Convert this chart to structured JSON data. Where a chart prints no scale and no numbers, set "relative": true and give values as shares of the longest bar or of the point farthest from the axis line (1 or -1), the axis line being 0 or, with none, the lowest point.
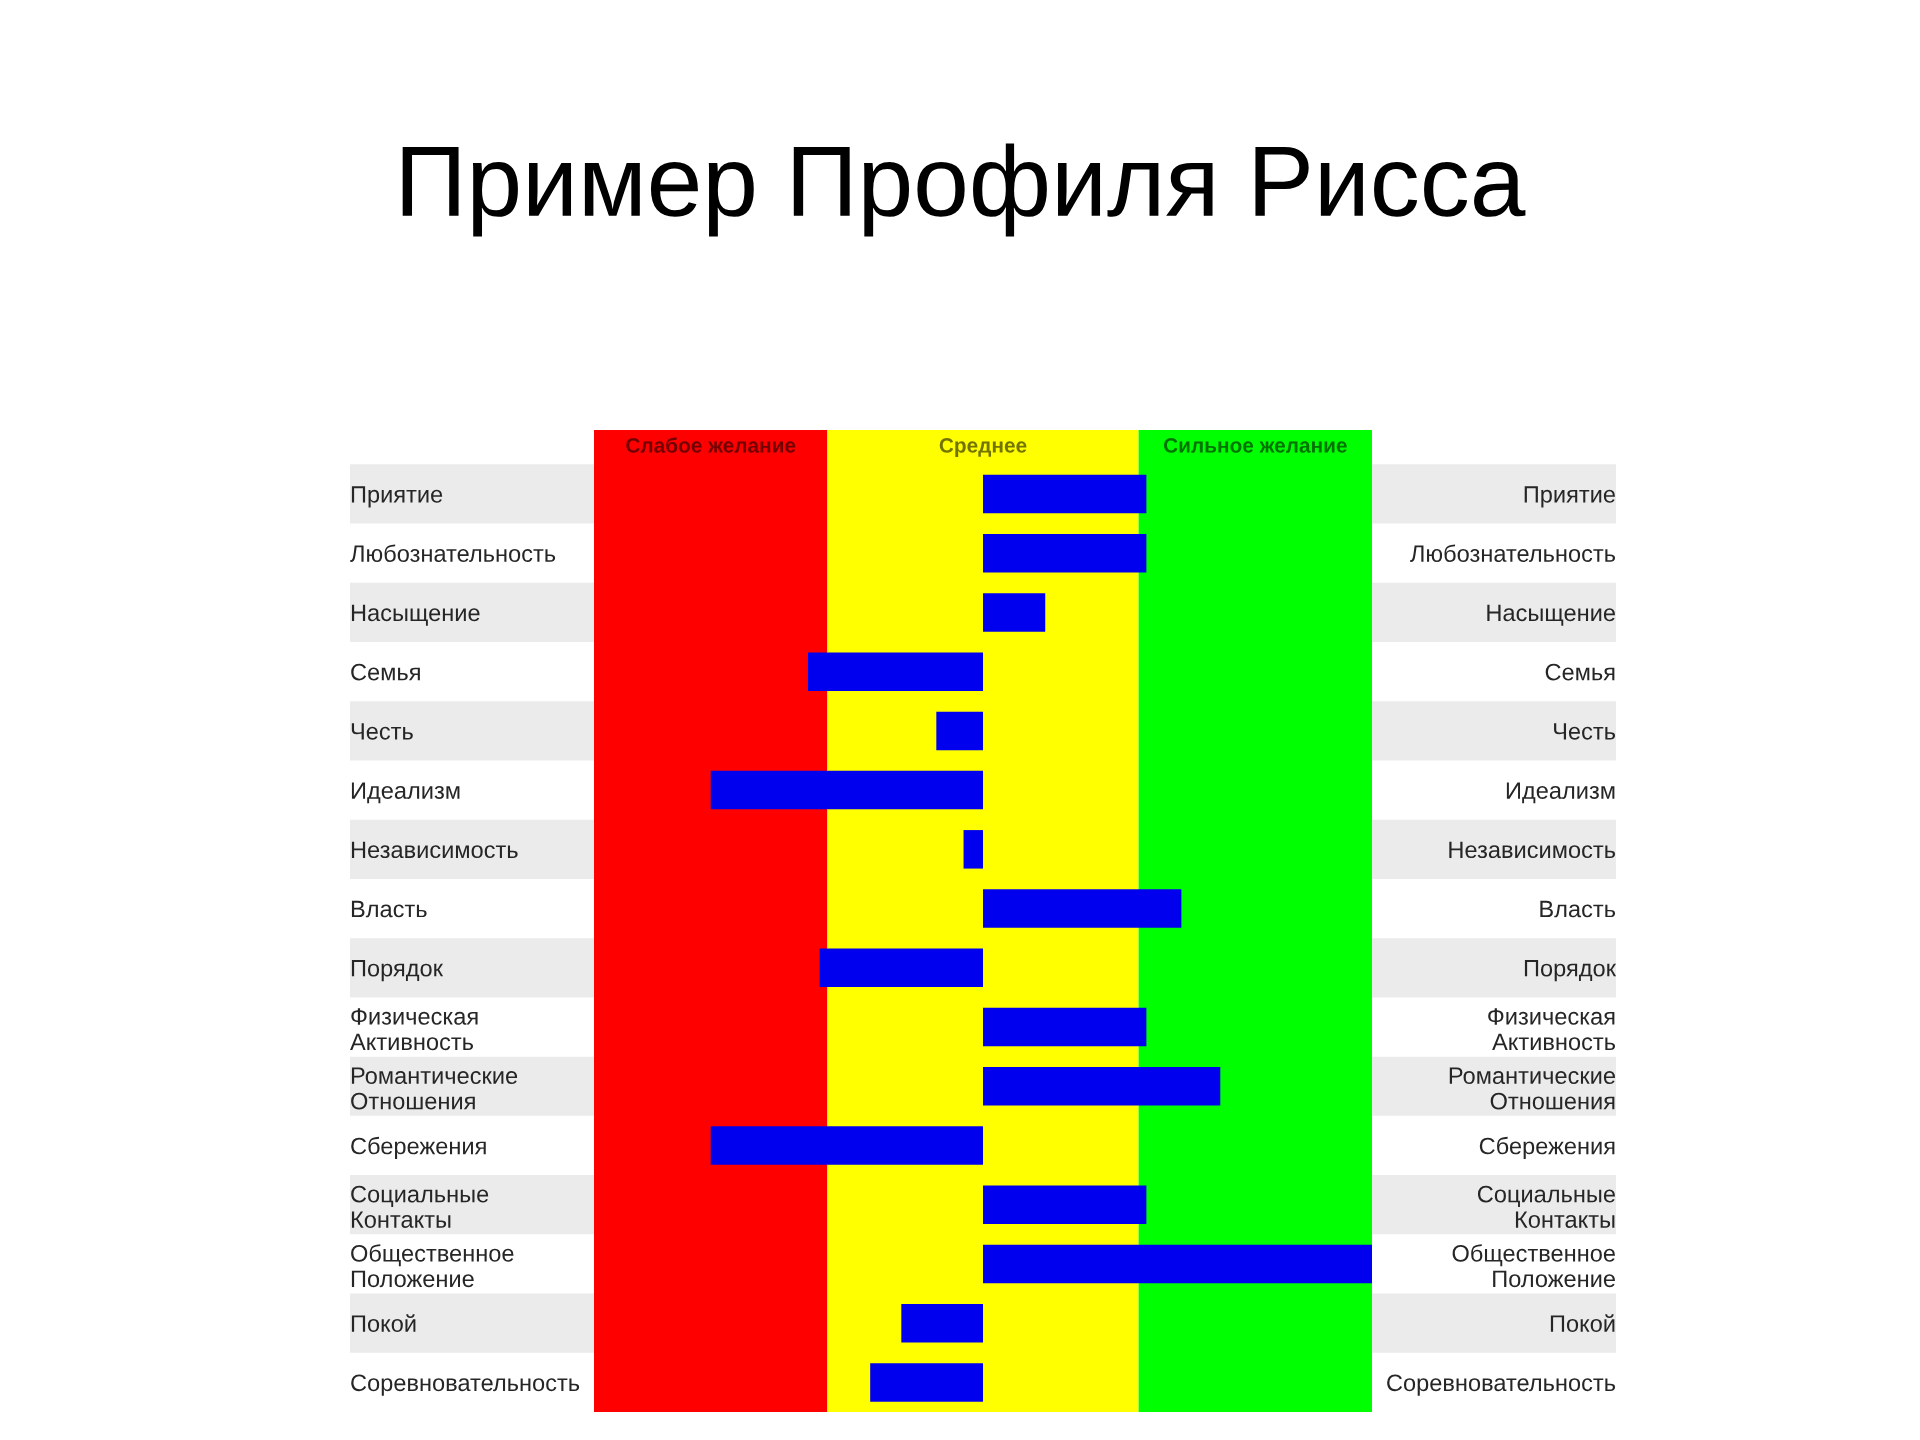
{
  "chart_data": {
    "type": "bar",
    "orientation": "horizontal",
    "relative": true,
    "title": "Пример Профиля Рисса",
    "categories": [
      "Приятие",
      "Любознательность",
      "Насыщение",
      "Семья",
      "Честь",
      "Идеализм",
      "Независимость",
      "Власть",
      "Порядок",
      "Физическая\nАктивность",
      "Романтические\nОтношения",
      "Сбережения",
      "Социальные\nКонтакты",
      "Общественное\nПоложение",
      "Покой",
      "Соревновательность"
    ],
    "y2_categories": [
      "Приятие",
      "Любознательность",
      "Насыщение",
      "Семья",
      "Честь",
      "Идеализм",
      "Независимость",
      "Власть",
      "Порядок",
      "Физическая\nАктивность",
      "Романтические\nОтношения",
      "Сбережения",
      "Социальные\nКонтакты",
      "Общественное\nПоложение",
      "Покой",
      "Соревновательность"
    ],
    "values": [
      0.42,
      0.42,
      0.16,
      -0.45,
      -0.12,
      -0.7,
      -0.05,
      0.51,
      -0.42,
      0.42,
      0.61,
      -0.7,
      0.42,
      1.0,
      -0.21,
      -0.29
    ],
    "color": "#0000ee",
    "bands": [
      {
        "axis": "x",
        "from": -1,
        "to": -0.4,
        "label": "Слабое желание",
        "color": "#ff0000"
      },
      {
        "axis": "x",
        "from": -0.4,
        "to": 0.4,
        "label": "Среднее",
        "color": "#ffff00"
      },
      {
        "axis": "x",
        "from": 0.4,
        "to": 1,
        "label": "Сильное желание",
        "color": "#00ff00"
      }
    ]
  }
}
